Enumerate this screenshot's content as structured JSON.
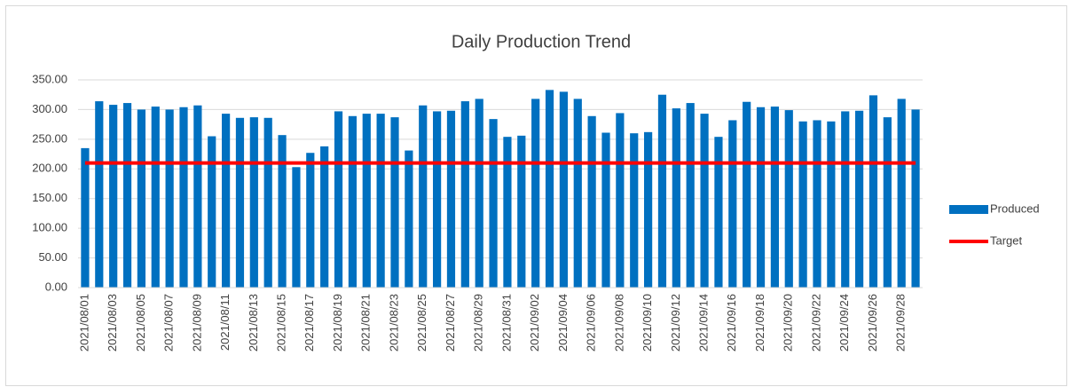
{
  "chart_data": {
    "type": "bar",
    "title": "Daily Production Trend",
    "categories": [
      "2021/08/01",
      null,
      "2021/08/03",
      null,
      "2021/08/05",
      null,
      "2021/08/07",
      null,
      "2021/08/09",
      null,
      "2021/08/11",
      null,
      "2021/08/13",
      null,
      "2021/08/15",
      null,
      "2021/08/17",
      null,
      "2021/08/19",
      null,
      "2021/08/21",
      null,
      "2021/08/23",
      null,
      "2021/08/25",
      null,
      "2021/08/27",
      null,
      "2021/08/29",
      null,
      "2021/08/31",
      null,
      "2021/09/02",
      null,
      "2021/09/04",
      null,
      "2021/09/06",
      null,
      "2021/09/08",
      null,
      "2021/09/10",
      null,
      "2021/09/12",
      null,
      "2021/09/14",
      null,
      "2021/09/16",
      null,
      "2021/09/18",
      null,
      "2021/09/20",
      null,
      "2021/09/22",
      null,
      "2021/09/24",
      null,
      "2021/09/26",
      null,
      "2021/09/28",
      null
    ],
    "series": [
      {
        "name": "Produced",
        "type": "bar",
        "color": "#0070c0",
        "values": [
          235,
          314,
          308,
          311,
          300,
          305,
          300,
          304,
          307,
          255,
          293,
          286,
          287,
          286,
          257,
          203,
          227,
          238,
          297,
          289,
          293,
          293,
          287,
          231,
          307,
          297,
          298,
          314,
          318,
          284,
          254,
          256,
          318,
          333,
          330,
          318,
          289,
          261,
          294,
          260,
          262,
          325,
          302,
          311,
          293,
          254,
          282,
          313,
          304,
          305,
          299,
          280,
          282,
          280,
          297,
          298,
          324,
          287,
          318,
          300
        ]
      },
      {
        "name": "Target",
        "type": "line",
        "color": "#ff0000",
        "values": [
          210,
          210,
          210,
          210,
          210,
          210,
          210,
          210,
          210,
          210,
          210,
          210,
          210,
          210,
          210,
          210,
          210,
          210,
          210,
          210,
          210,
          210,
          210,
          210,
          210,
          210,
          210,
          210,
          210,
          210,
          210,
          210,
          210,
          210,
          210,
          210,
          210,
          210,
          210,
          210,
          210,
          210,
          210,
          210,
          210,
          210,
          210,
          210,
          210,
          210,
          210,
          210,
          210,
          210,
          210,
          210,
          210,
          210,
          210,
          210
        ]
      }
    ],
    "ylim": [
      0,
      350
    ],
    "yticks": [
      {
        "value": 0,
        "label": "0.00"
      },
      {
        "value": 50,
        "label": "50.00"
      },
      {
        "value": 100,
        "label": "100.00"
      },
      {
        "value": 150,
        "label": "150.00"
      },
      {
        "value": 200,
        "label": "200.00"
      },
      {
        "value": 250,
        "label": "250.00"
      },
      {
        "value": 300,
        "label": "300.00"
      },
      {
        "value": 350,
        "label": "350.00"
      }
    ],
    "grid": true,
    "legend": "right"
  }
}
